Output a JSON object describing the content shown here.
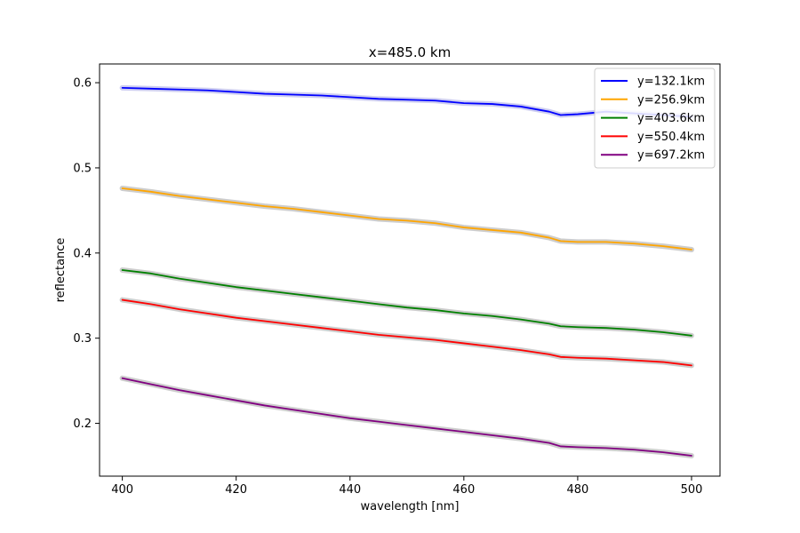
{
  "chart_data": {
    "type": "line",
    "title": "x=485.0 km",
    "xlabel": "wavelength [nm]",
    "ylabel": "reflectance",
    "xlim": [
      396,
      505
    ],
    "ylim": [
      0.138,
      0.622
    ],
    "x_ticks": [
      400,
      420,
      440,
      460,
      480,
      500
    ],
    "x_tick_labels": [
      "400",
      "420",
      "440",
      "460",
      "480",
      "500"
    ],
    "y_ticks": [
      0.2,
      0.3,
      0.4,
      0.5,
      0.6
    ],
    "y_tick_labels": [
      "0.2",
      "0.3",
      "0.4",
      "0.5",
      "0.6"
    ],
    "grid": false,
    "legend_position": "top-right",
    "band_color": "#c8c8c8",
    "x": [
      400,
      405,
      410,
      415,
      420,
      425,
      430,
      435,
      440,
      445,
      450,
      455,
      460,
      465,
      470,
      475,
      477,
      480,
      485,
      490,
      495,
      500
    ],
    "series": [
      {
        "name": "y=132.1km",
        "color": "#0000ff",
        "band_color": "#c8c8f0",
        "values": [
          0.594,
          0.593,
          0.592,
          0.591,
          0.589,
          0.587,
          0.586,
          0.585,
          0.583,
          0.581,
          0.58,
          0.579,
          0.576,
          0.575,
          0.572,
          0.566,
          0.562,
          0.563,
          0.566,
          0.564,
          0.562,
          0.56
        ]
      },
      {
        "name": "y=256.9km",
        "color": "#ffa500",
        "values": [
          0.476,
          0.472,
          0.467,
          0.463,
          0.459,
          0.455,
          0.452,
          0.448,
          0.444,
          0.44,
          0.438,
          0.435,
          0.43,
          0.427,
          0.424,
          0.418,
          0.414,
          0.413,
          0.413,
          0.411,
          0.408,
          0.404
        ]
      },
      {
        "name": "y=403.6km",
        "color": "#008000",
        "values": [
          0.38,
          0.376,
          0.37,
          0.365,
          0.36,
          0.356,
          0.352,
          0.348,
          0.344,
          0.34,
          0.336,
          0.333,
          0.329,
          0.326,
          0.322,
          0.317,
          0.314,
          0.313,
          0.312,
          0.31,
          0.307,
          0.303
        ]
      },
      {
        "name": "y=550.4km",
        "color": "#ff0000",
        "values": [
          0.345,
          0.34,
          0.334,
          0.329,
          0.324,
          0.32,
          0.316,
          0.312,
          0.308,
          0.304,
          0.301,
          0.298,
          0.294,
          0.29,
          0.286,
          0.281,
          0.278,
          0.277,
          0.276,
          0.274,
          0.272,
          0.268
        ]
      },
      {
        "name": "y=697.2km",
        "color": "#800080",
        "values": [
          0.253,
          0.246,
          0.239,
          0.233,
          0.227,
          0.221,
          0.216,
          0.211,
          0.206,
          0.202,
          0.198,
          0.194,
          0.19,
          0.186,
          0.182,
          0.177,
          0.173,
          0.172,
          0.171,
          0.169,
          0.166,
          0.162
        ]
      }
    ]
  }
}
